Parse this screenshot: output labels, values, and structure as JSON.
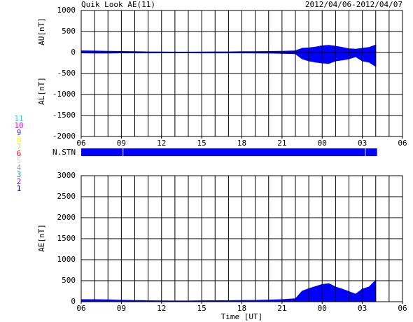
{
  "chart_data": [
    {
      "type": "area",
      "title": "Quik Look AE(11)",
      "subtitle": "2012/04/06-2012/04/07",
      "ylabels": [
        "AU[nT]",
        "AL[nT]"
      ],
      "x": [
        6,
        7,
        8,
        9,
        10,
        11,
        12,
        13,
        14,
        15,
        16,
        17,
        18,
        19,
        20,
        21,
        22,
        22.5,
        23,
        23.5,
        24,
        24.5,
        25,
        25.5,
        26,
        26.5,
        27,
        27.5,
        28
      ],
      "series": [
        {
          "color": "#0000ff",
          "values": [
            40,
            35,
            30,
            25,
            20,
            15,
            12,
            10,
            10,
            12,
            15,
            15,
            20,
            20,
            25,
            30,
            40,
            100,
            110,
            130,
            160,
            170,
            150,
            120,
            90,
            80,
            100,
            120,
            180
          ]
        },
        {
          "color": "#0000ff",
          "values": [
            -10,
            -15,
            -15,
            -10,
            -10,
            -10,
            -8,
            -8,
            -8,
            -10,
            -10,
            -10,
            -10,
            -12,
            -15,
            -20,
            -30,
            -150,
            -200,
            -230,
            -250,
            -260,
            -200,
            -180,
            -150,
            -100,
            -200,
            -230,
            -330
          ]
        }
      ],
      "xlim": [
        6,
        30
      ],
      "xticks": [
        {
          "value": 6,
          "label": "06"
        },
        {
          "value": 9,
          "label": "09"
        },
        12,
        15,
        18,
        21,
        {
          "value": 24,
          "label": "00"
        },
        {
          "value": 27,
          "label": "03"
        },
        {
          "value": 30,
          "label": "06"
        }
      ],
      "xgrid_step": 1,
      "ylim": [
        -2000,
        1000
      ],
      "yticks": [
        1000,
        500,
        0,
        -500,
        -1000,
        -1500,
        -2000
      ],
      "grid": true
    },
    {
      "type": "area",
      "ylabel": "AE[nT]",
      "xlabel": "Time [UT]",
      "x": [
        6,
        7,
        8,
        9,
        10,
        11,
        12,
        13,
        14,
        15,
        16,
        17,
        18,
        19,
        20,
        21,
        22,
        22.5,
        23,
        23.5,
        24,
        24.5,
        25,
        25.5,
        26,
        26.5,
        27,
        27.5,
        28
      ],
      "series": [
        {
          "color": "#0000ff",
          "values": [
            50,
            50,
            45,
            35,
            30,
            25,
            20,
            18,
            18,
            22,
            25,
            25,
            30,
            32,
            40,
            50,
            70,
            250,
            310,
            360,
            410,
            430,
            350,
            300,
            240,
            180,
            300,
            350,
            510
          ]
        }
      ],
      "xlim": [
        6,
        30
      ],
      "xticks": [
        {
          "value": 6,
          "label": "06"
        },
        {
          "value": 9,
          "label": "09"
        },
        12,
        15,
        18,
        21,
        {
          "value": 24,
          "label": "00"
        },
        {
          "value": 27,
          "label": "03"
        },
        {
          "value": 30,
          "label": "06"
        }
      ],
      "xgrid_step": 1,
      "ylim": [
        0,
        3000
      ],
      "yticks": [
        0,
        500,
        1000,
        1500,
        2000,
        2500,
        3000
      ],
      "grid": true
    }
  ],
  "station_bar": {
    "label": "N.STN",
    "color": "#0000ff",
    "x_start": [
      6,
      9.15,
      27.25
    ],
    "x_end": [
      9.1,
      27.2,
      28.1
    ]
  },
  "station_legend": [
    {
      "label": "11",
      "color": "#00e0ff"
    },
    {
      "label": "10",
      "color": "#ff00ff"
    },
    {
      "label": "9",
      "color": "#3030ff"
    },
    {
      "label": "8",
      "color": "#ffff00"
    },
    {
      "label": "7",
      "color": "#c8e850"
    },
    {
      "label": "6",
      "color": "#ff0000"
    },
    {
      "label": "5",
      "color": "#d0d0d0"
    },
    {
      "label": "4",
      "color": "#a0a0a0"
    },
    {
      "label": "3",
      "color": "#00a0a0"
    },
    {
      "label": "2",
      "color": "#a000a0"
    },
    {
      "label": "1",
      "color": "#0000c0"
    }
  ]
}
